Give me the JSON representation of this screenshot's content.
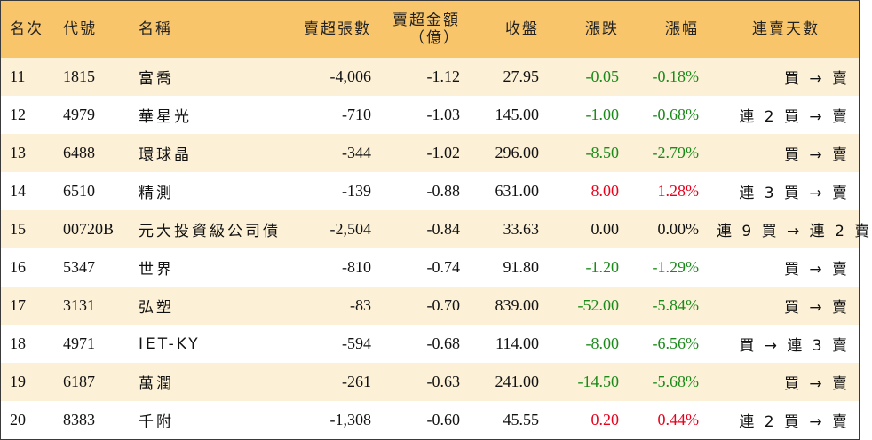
{
  "headers": {
    "rank": "名次",
    "code": "代號",
    "name": "名稱",
    "net_sell_lots": "賣超張數",
    "net_sell_amount_line1": "賣超金額",
    "net_sell_amount_line2": "（億）",
    "close": "收盤",
    "change": "漲跌",
    "change_pct": "漲幅",
    "streak": "連賣天數"
  },
  "colors": {
    "header_bg": "#f9c56a",
    "stripe_bg": "#fcf0d6",
    "down": "#1a8a1a",
    "up": "#e8001c"
  },
  "rows": [
    {
      "rank": "11",
      "code": "1815",
      "name": "富喬",
      "lots": "-4,006",
      "amount": "-1.12",
      "close": "27.95",
      "change": "-0.05",
      "pct": "-0.18%",
      "streak": "買 → 賣",
      "dir": "neg"
    },
    {
      "rank": "12",
      "code": "4979",
      "name": "華星光",
      "lots": "-710",
      "amount": "-1.03",
      "close": "145.00",
      "change": "-1.00",
      "pct": "-0.68%",
      "streak": "連 2 買 → 賣",
      "dir": "neg"
    },
    {
      "rank": "13",
      "code": "6488",
      "name": "環球晶",
      "lots": "-344",
      "amount": "-1.02",
      "close": "296.00",
      "change": "-8.50",
      "pct": "-2.79%",
      "streak": "買 → 賣",
      "dir": "neg"
    },
    {
      "rank": "14",
      "code": "6510",
      "name": "精測",
      "lots": "-139",
      "amount": "-0.88",
      "close": "631.00",
      "change": "8.00",
      "pct": "1.28%",
      "streak": "連 3 買 → 賣",
      "dir": "pos"
    },
    {
      "rank": "15",
      "code": "00720B",
      "name": "元大投資級公司債",
      "lots": "-2,504",
      "amount": "-0.84",
      "close": "33.63",
      "change": "0.00",
      "pct": "0.00%",
      "streak": "連 9 買 → 連 2 賣",
      "dir": "flat"
    },
    {
      "rank": "16",
      "code": "5347",
      "name": "世界",
      "lots": "-810",
      "amount": "-0.74",
      "close": "91.80",
      "change": "-1.20",
      "pct": "-1.29%",
      "streak": "買 → 賣",
      "dir": "neg"
    },
    {
      "rank": "17",
      "code": "3131",
      "name": "弘塑",
      "lots": "-83",
      "amount": "-0.70",
      "close": "839.00",
      "change": "-52.00",
      "pct": "-5.84%",
      "streak": "買 → 賣",
      "dir": "neg"
    },
    {
      "rank": "18",
      "code": "4971",
      "name": "IET-KY",
      "lots": "-594",
      "amount": "-0.68",
      "close": "114.00",
      "change": "-8.00",
      "pct": "-6.56%",
      "streak": "買 → 連 3 賣",
      "dir": "neg"
    },
    {
      "rank": "19",
      "code": "6187",
      "name": "萬潤",
      "lots": "-261",
      "amount": "-0.63",
      "close": "241.00",
      "change": "-14.50",
      "pct": "-5.68%",
      "streak": "買 → 賣",
      "dir": "neg"
    },
    {
      "rank": "20",
      "code": "8383",
      "name": "千附",
      "lots": "-1,308",
      "amount": "-0.60",
      "close": "45.55",
      "change": "0.20",
      "pct": "0.44%",
      "streak": "連 2 買 → 賣",
      "dir": "pos"
    }
  ]
}
